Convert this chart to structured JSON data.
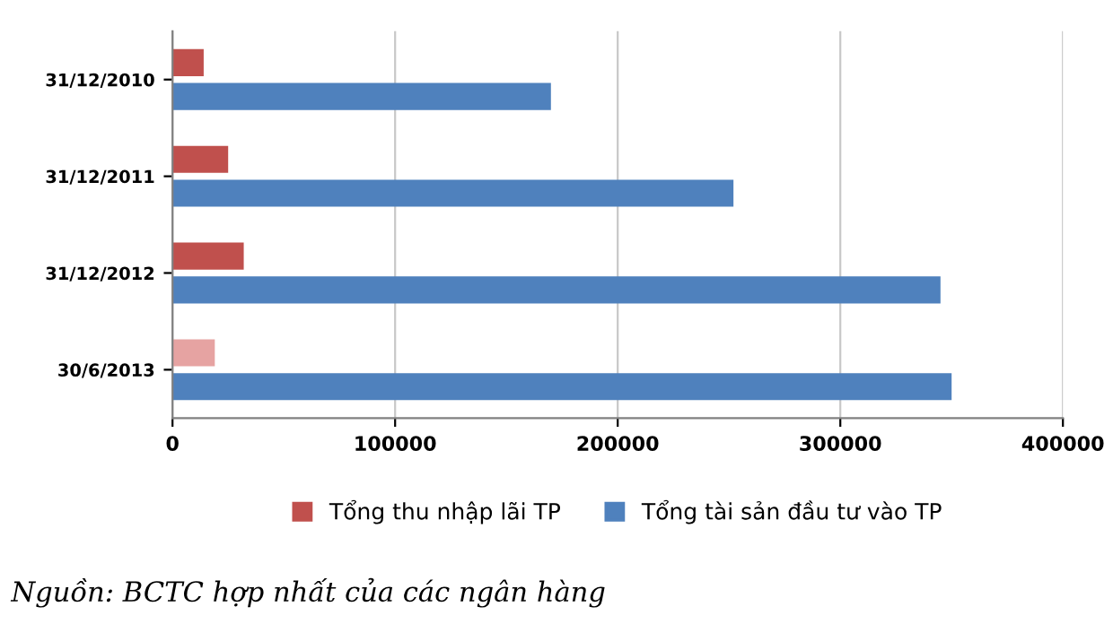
{
  "chart_data": {
    "type": "bar",
    "orientation": "horizontal",
    "categories": [
      "31/12/2010",
      "31/12/2011",
      "31/12/2012",
      "30/6/2013"
    ],
    "series": [
      {
        "name": "Tổng thu nhập lãi TP",
        "color": "#c0504d",
        "colors": [
          "#c0504d",
          "#c0504d",
          "#c0504d",
          "#e6a3a2"
        ],
        "values": [
          14000,
          25000,
          32000,
          19000
        ]
      },
      {
        "name": "Tổng tài sản đầu tư vào TP",
        "color": "#4f81bd",
        "values": [
          170000,
          252000,
          345000,
          350000
        ]
      }
    ],
    "xlim": [
      0,
      400000
    ],
    "xticks": [
      0,
      100000,
      200000,
      300000,
      400000
    ],
    "grid": "x",
    "legend": "bottom",
    "annotations": [
      "Nguồn: BCTC hợp nhất của các ngân hàng"
    ]
  }
}
